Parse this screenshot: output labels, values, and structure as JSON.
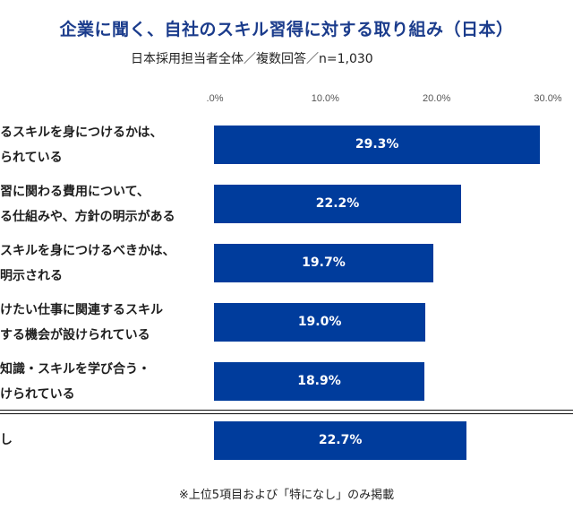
{
  "title": "企業に聞く、自社のスキル習得に対する取り組み（日本）",
  "subtitle": "日本採用担当者全体／複数回答／n=1,030",
  "note": "※上位5項目および「特になし」のみ掲載",
  "colors": {
    "bar": "#003c9c",
    "title": "#1b3c8c"
  },
  "chart_data": {
    "type": "bar",
    "orientation": "horizontal",
    "title": "企業に聞く、自社のスキル習得に対する取り組み（日本）",
    "subtitle": "日本採用担当者全体／複数回答／n=1,030",
    "xlim": [
      0,
      30
    ],
    "tick_values": [
      0,
      10,
      20,
      30
    ],
    "tick_labels": [
      ".0%",
      "10.0%",
      "20.0%",
      "30.0%"
    ],
    "categories": [
      [
        "るスキルを身につけるかは、",
        "られている"
      ],
      [
        "習に関わる費用について、",
        "る仕組みや、方針の明示がある"
      ],
      [
        "スキルを身につけるべきかは、",
        "明示される"
      ],
      [
        "けたい仕事に関連するスキル",
        "する機会が設けられている"
      ],
      [
        "知識・スキルを学び合う・",
        "けられている"
      ],
      [
        "し"
      ]
    ],
    "values": [
      29.3,
      22.2,
      19.7,
      19.0,
      18.9,
      22.7
    ],
    "data_labels": [
      "29.3%",
      "22.2%",
      "19.7%",
      "19.0%",
      "18.9%",
      "22.7%"
    ],
    "separator_before_index": 5,
    "footnote": "※上位5項目および「特になし」のみ掲載"
  }
}
